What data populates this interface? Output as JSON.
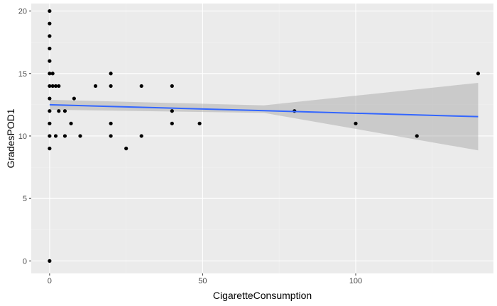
{
  "chart_data": {
    "type": "scatter",
    "xlabel": "CigaretteConsumption",
    "ylabel": "GradesPOD1",
    "xlim": [
      -6,
      145
    ],
    "ylim": [
      -1,
      20.6
    ],
    "x_ticks": [
      0,
      50,
      100
    ],
    "y_ticks": [
      0,
      5,
      10,
      15,
      20
    ],
    "x_minor_ticks": [
      25,
      75,
      125
    ],
    "y_minor_ticks": [
      2.5,
      7.5,
      12.5,
      17.5
    ],
    "grid": true,
    "points": [
      {
        "x": 0,
        "y": 20
      },
      {
        "x": 0,
        "y": 19
      },
      {
        "x": 0,
        "y": 18
      },
      {
        "x": 0,
        "y": 17
      },
      {
        "x": 0,
        "y": 16
      },
      {
        "x": 0,
        "y": 15
      },
      {
        "x": 0,
        "y": 14
      },
      {
        "x": 0,
        "y": 13
      },
      {
        "x": 0,
        "y": 12
      },
      {
        "x": 0,
        "y": 11
      },
      {
        "x": 0,
        "y": 10
      },
      {
        "x": 0,
        "y": 9
      },
      {
        "x": 0,
        "y": 0
      },
      {
        "x": 1,
        "y": 15
      },
      {
        "x": 1,
        "y": 14
      },
      {
        "x": 2,
        "y": 14
      },
      {
        "x": 2,
        "y": 10
      },
      {
        "x": 3,
        "y": 14
      },
      {
        "x": 3,
        "y": 12
      },
      {
        "x": 5,
        "y": 12
      },
      {
        "x": 5,
        "y": 10
      },
      {
        "x": 7,
        "y": 11
      },
      {
        "x": 8,
        "y": 13
      },
      {
        "x": 10,
        "y": 10
      },
      {
        "x": 15,
        "y": 14
      },
      {
        "x": 20,
        "y": 15
      },
      {
        "x": 20,
        "y": 14
      },
      {
        "x": 20,
        "y": 11
      },
      {
        "x": 20,
        "y": 10
      },
      {
        "x": 25,
        "y": 9
      },
      {
        "x": 30,
        "y": 14
      },
      {
        "x": 30,
        "y": 10
      },
      {
        "x": 40,
        "y": 14
      },
      {
        "x": 40,
        "y": 12
      },
      {
        "x": 40,
        "y": 11
      },
      {
        "x": 49,
        "y": 11
      },
      {
        "x": 80,
        "y": 12
      },
      {
        "x": 100,
        "y": 11
      },
      {
        "x": 120,
        "y": 10
      },
      {
        "x": 140,
        "y": 15
      }
    ],
    "trend": {
      "method": "lm",
      "x_range": [
        0,
        140
      ],
      "y_start": 12.5,
      "y_end": 11.55,
      "ci_start": [
        12.1,
        12.9
      ],
      "ci_mid": [
        11.85,
        12.45
      ],
      "ci_end": [
        8.85,
        14.25
      ]
    },
    "colors": {
      "panel": "#ebebeb",
      "grid_major": "#ffffff",
      "grid_minor": "#f2f2f2",
      "points": "#000000",
      "line": "#3366ff",
      "ribbon": "#999999"
    }
  }
}
